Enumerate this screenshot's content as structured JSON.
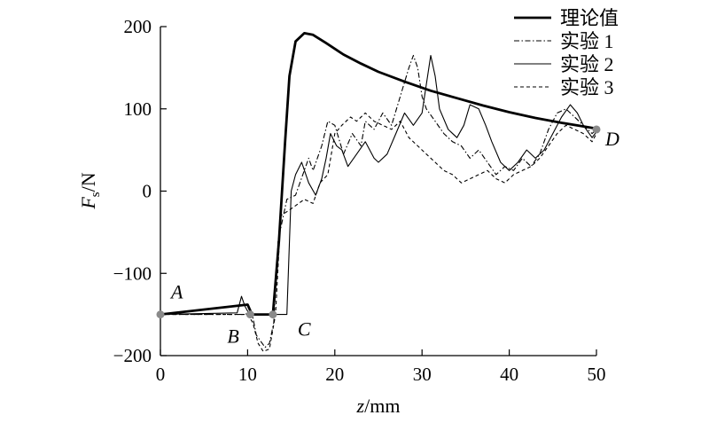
{
  "chart_data": {
    "type": "line",
    "xlabel": "z/mm",
    "ylabel": "Fs/N",
    "ylabel_main": "F",
    "ylabel_sub": "s",
    "ylabel_unit": "/N",
    "xlabel_var": "z",
    "xlabel_unit": "/mm",
    "xlim": [
      0,
      50
    ],
    "ylim": [
      -200,
      200
    ],
    "xticks": [
      0,
      10,
      20,
      30,
      40,
      50
    ],
    "yticks": [
      -200,
      -100,
      0,
      100,
      200
    ],
    "legend_position": "top-right",
    "grid": false,
    "series": [
      {
        "name": "理论值",
        "style": "solid-thick",
        "points": [
          [
            0,
            -150
          ],
          [
            10,
            -138
          ],
          [
            10.5,
            -150
          ],
          [
            12.9,
            -150
          ],
          [
            13.6,
            -60
          ],
          [
            14.3,
            60
          ],
          [
            14.8,
            140
          ],
          [
            15.5,
            182
          ],
          [
            16.5,
            192
          ],
          [
            17.5,
            190
          ],
          [
            19,
            180
          ],
          [
            21,
            166
          ],
          [
            23,
            155
          ],
          [
            25,
            145
          ],
          [
            28,
            133
          ],
          [
            31,
            122
          ],
          [
            34,
            113
          ],
          [
            37,
            104
          ],
          [
            40,
            96
          ],
          [
            43,
            89
          ],
          [
            46,
            83
          ],
          [
            50,
            76
          ]
        ]
      },
      {
        "name": "实验 1",
        "style": "dash-dot",
        "points": [
          [
            0,
            -150
          ],
          [
            9.5,
            -150
          ],
          [
            10.5,
            -148
          ],
          [
            11,
            -175
          ],
          [
            12,
            -190
          ],
          [
            12.5,
            -185
          ],
          [
            13,
            -160
          ],
          [
            13.5,
            -60
          ],
          [
            14.5,
            -10
          ],
          [
            15.5,
            -5
          ],
          [
            16,
            10
          ],
          [
            17,
            40
          ],
          [
            17.5,
            25
          ],
          [
            18.5,
            55
          ],
          [
            19.2,
            85
          ],
          [
            20,
            80
          ],
          [
            21,
            45
          ],
          [
            22,
            70
          ],
          [
            23,
            55
          ],
          [
            23.5,
            85
          ],
          [
            24.5,
            75
          ],
          [
            25.5,
            95
          ],
          [
            26.5,
            80
          ],
          [
            27.5,
            115
          ],
          [
            28.5,
            150
          ],
          [
            29,
            165
          ],
          [
            29.5,
            150
          ],
          [
            30,
            115
          ],
          [
            30.5,
            100
          ],
          [
            31.5,
            85
          ],
          [
            32.5,
            70
          ],
          [
            33.5,
            60
          ],
          [
            34.5,
            55
          ],
          [
            35.5,
            40
          ],
          [
            36.5,
            50
          ],
          [
            37.5,
            35
          ],
          [
            38.5,
            20
          ],
          [
            39.5,
            30
          ],
          [
            40.5,
            25
          ],
          [
            41.5,
            40
          ],
          [
            42.5,
            30
          ],
          [
            43.5,
            45
          ],
          [
            44.5,
            75
          ],
          [
            45.5,
            95
          ],
          [
            46.5,
            100
          ],
          [
            47.5,
            90
          ],
          [
            48.5,
            80
          ],
          [
            49.5,
            70
          ],
          [
            50,
            75
          ]
        ]
      },
      {
        "name": "实验 2",
        "style": "solid-thin",
        "points": [
          [
            0,
            -150
          ],
          [
            8.8,
            -148
          ],
          [
            9.3,
            -128
          ],
          [
            9.7,
            -140
          ],
          [
            10.1,
            -148
          ],
          [
            10.8,
            -150
          ],
          [
            14,
            -150
          ],
          [
            14.5,
            -150
          ],
          [
            15,
            0
          ],
          [
            15.5,
            20
          ],
          [
            16.2,
            35
          ],
          [
            17,
            10
          ],
          [
            17.8,
            -5
          ],
          [
            18.5,
            15
          ],
          [
            19,
            40
          ],
          [
            19.5,
            70
          ],
          [
            20.2,
            55
          ],
          [
            20.8,
            50
          ],
          [
            21.5,
            30
          ],
          [
            22.5,
            45
          ],
          [
            23.5,
            60
          ],
          [
            24.5,
            40
          ],
          [
            25,
            35
          ],
          [
            26,
            45
          ],
          [
            27,
            70
          ],
          [
            28,
            95
          ],
          [
            29,
            80
          ],
          [
            30,
            95
          ],
          [
            30.5,
            130
          ],
          [
            31,
            165
          ],
          [
            31.5,
            140
          ],
          [
            32,
            100
          ],
          [
            33,
            75
          ],
          [
            34,
            65
          ],
          [
            34.8,
            80
          ],
          [
            35.5,
            105
          ],
          [
            36.5,
            100
          ],
          [
            37.3,
            80
          ],
          [
            38,
            60
          ],
          [
            39,
            35
          ],
          [
            40,
            25
          ],
          [
            41,
            35
          ],
          [
            42,
            50
          ],
          [
            43,
            40
          ],
          [
            44,
            50
          ],
          [
            45,
            70
          ],
          [
            46,
            90
          ],
          [
            47,
            105
          ],
          [
            47.8,
            95
          ],
          [
            48.5,
            80
          ],
          [
            49.5,
            65
          ],
          [
            50,
            72
          ]
        ]
      },
      {
        "name": "实验 3",
        "style": "dashed",
        "points": [
          [
            0,
            -150
          ],
          [
            10,
            -150
          ],
          [
            10.6,
            -160
          ],
          [
            11.2,
            -185
          ],
          [
            11.8,
            -195
          ],
          [
            12.5,
            -192
          ],
          [
            13.2,
            -150
          ],
          [
            13.8,
            -30
          ],
          [
            14.5,
            -25
          ],
          [
            15.2,
            -20
          ],
          [
            16.5,
            -10
          ],
          [
            17.5,
            -15
          ],
          [
            18.3,
            10
          ],
          [
            19.2,
            20
          ],
          [
            20,
            70
          ],
          [
            20.8,
            80
          ],
          [
            21.8,
            90
          ],
          [
            22.5,
            85
          ],
          [
            23.5,
            95
          ],
          [
            24.5,
            85
          ],
          [
            25.5,
            80
          ],
          [
            26.5,
            75
          ],
          [
            27.5,
            85
          ],
          [
            28.5,
            65
          ],
          [
            29.5,
            55
          ],
          [
            30.5,
            45
          ],
          [
            31.5,
            35
          ],
          [
            32.5,
            25
          ],
          [
            33.5,
            20
          ],
          [
            34.5,
            10
          ],
          [
            35.5,
            15
          ],
          [
            36.5,
            20
          ],
          [
            37.5,
            25
          ],
          [
            38.5,
            15
          ],
          [
            39.5,
            10
          ],
          [
            40.5,
            20
          ],
          [
            41.5,
            25
          ],
          [
            42.5,
            30
          ],
          [
            43.5,
            40
          ],
          [
            44.5,
            55
          ],
          [
            45.5,
            70
          ],
          [
            46.5,
            80
          ],
          [
            47.5,
            75
          ],
          [
            48.5,
            70
          ],
          [
            49.5,
            60
          ],
          [
            50,
            70
          ]
        ]
      }
    ],
    "markers": [
      {
        "label": "A",
        "x": 0,
        "y": -150
      },
      {
        "label": "B",
        "x": 10.3,
        "y": -150
      },
      {
        "label": "C",
        "x": 12.9,
        "y": -150
      },
      {
        "label": "D",
        "x": 50,
        "y": 75
      }
    ]
  }
}
